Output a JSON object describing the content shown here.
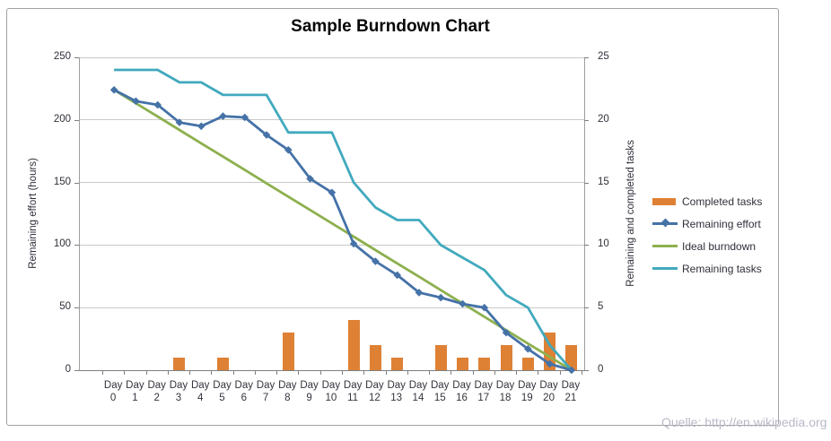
{
  "title": "Sample Burndown Chart",
  "watermark": "Quelle: http://en.wikipedia.org",
  "y_left": {
    "title": "Remaining effort (hours)",
    "ticks": [
      0,
      50,
      100,
      150,
      200,
      250
    ]
  },
  "y_right": {
    "title": "Remaining and completed tasks",
    "ticks": [
      0,
      5,
      10,
      15,
      20,
      25
    ]
  },
  "x_axis": {
    "label_prefix": "Day",
    "days": [
      0,
      1,
      2,
      3,
      4,
      5,
      6,
      7,
      8,
      9,
      10,
      11,
      12,
      13,
      14,
      15,
      16,
      17,
      18,
      19,
      20,
      21
    ]
  },
  "legend": [
    {
      "label": "Completed tasks",
      "type": "bar",
      "color": "#de8135"
    },
    {
      "label": "Remaining effort",
      "type": "line-diamond",
      "color": "#4572a7"
    },
    {
      "label": "Ideal burndown",
      "type": "line",
      "color": "#8db04e"
    },
    {
      "label": "Remaining tasks",
      "type": "line",
      "color": "#41a9be"
    }
  ],
  "colors": {
    "completed_tasks": "#de8135",
    "remaining_effort": "#4572a7",
    "ideal_burndown": "#8db04e",
    "remaining_tasks": "#41a9be",
    "gridline": "#c9c9c9",
    "axis": "#7f7f7f",
    "text": "#2f2f3a",
    "watermark_text": "#b8b9c8"
  },
  "chart_data": {
    "type": "combo-bar-line",
    "title": "Sample Burndown Chart",
    "categories": [
      "Day 0",
      "Day 1",
      "Day 2",
      "Day 3",
      "Day 4",
      "Day 5",
      "Day 6",
      "Day 7",
      "Day 8",
      "Day 9",
      "Day 10",
      "Day 11",
      "Day 12",
      "Day 13",
      "Day 14",
      "Day 15",
      "Day 16",
      "Day 17",
      "Day 18",
      "Day 19",
      "Day 20",
      "Day 21"
    ],
    "ylabel_left": "Remaining effort (hours)",
    "ylabel_right": "Remaining and completed tasks",
    "ylim_left": [
      0,
      250
    ],
    "ylim_right": [
      0,
      25
    ],
    "grid": true,
    "legend_position": "right",
    "series": [
      {
        "name": "Completed tasks",
        "type": "bar",
        "axis": "right",
        "values": [
          0,
          0,
          0,
          1,
          0,
          1,
          0,
          0,
          3,
          0,
          0,
          4,
          2,
          1,
          0,
          2,
          1,
          1,
          2,
          1,
          3,
          2
        ]
      },
      {
        "name": "Remaining effort",
        "type": "line",
        "axis": "left",
        "marker": "diamond",
        "values": [
          224,
          215,
          212,
          198,
          195,
          203,
          202,
          188,
          176,
          153,
          142,
          101,
          87,
          76,
          62,
          58,
          53,
          50,
          30,
          17,
          5,
          0
        ]
      },
      {
        "name": "Ideal burndown",
        "type": "line",
        "axis": "left",
        "values": [
          224,
          213.3,
          202.7,
          192,
          181.3,
          170.7,
          160,
          149.3,
          138.7,
          128,
          117.3,
          106.7,
          96,
          85.3,
          74.7,
          64,
          53.3,
          42.7,
          32,
          21.3,
          10.7,
          0
        ]
      },
      {
        "name": "Remaining tasks",
        "type": "line",
        "axis": "right",
        "values": [
          24,
          24,
          24,
          23,
          23,
          22,
          22,
          22,
          19,
          19,
          19,
          15,
          13,
          12,
          12,
          10,
          9,
          8,
          6,
          5,
          2,
          0
        ]
      }
    ]
  }
}
